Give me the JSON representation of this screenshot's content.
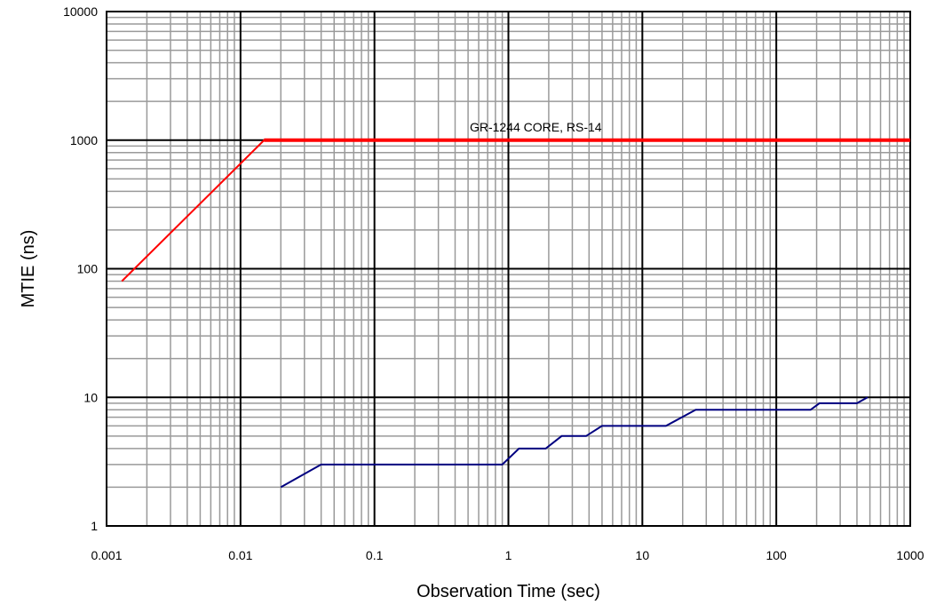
{
  "chart_data": {
    "type": "line",
    "xlabel": "Observation Time (sec)",
    "ylabel": "MTIE (ns)",
    "x_scale": "log",
    "y_scale": "log",
    "xlim": [
      0.001,
      1000
    ],
    "ylim": [
      1,
      10000
    ],
    "x_tick_labels": [
      "0.001",
      "0.01",
      "0.1",
      "1",
      "10",
      "100",
      "1000"
    ],
    "y_tick_labels": [
      "1",
      "10",
      "100",
      "1000",
      "10000"
    ],
    "grid": true,
    "annotations": [
      {
        "text": "GR-1244 CORE, RS-14",
        "x": 1.6,
        "y": 1000
      }
    ],
    "series": [
      {
        "color": "#ff0000",
        "points": [
          [
            0.0013,
            80
          ],
          [
            0.015,
            1000
          ],
          [
            1000,
            1000
          ]
        ]
      },
      {
        "color": "#000080",
        "points": [
          [
            0.02,
            2
          ],
          [
            0.04,
            3
          ],
          [
            0.9,
            3
          ],
          [
            1.2,
            4
          ],
          [
            1.9,
            4
          ],
          [
            2.5,
            5
          ],
          [
            3.8,
            5
          ],
          [
            5,
            6
          ],
          [
            15,
            6
          ],
          [
            25,
            8
          ],
          [
            180,
            8
          ],
          [
            210,
            9
          ],
          [
            400,
            9
          ],
          [
            480,
            10
          ]
        ]
      }
    ]
  }
}
